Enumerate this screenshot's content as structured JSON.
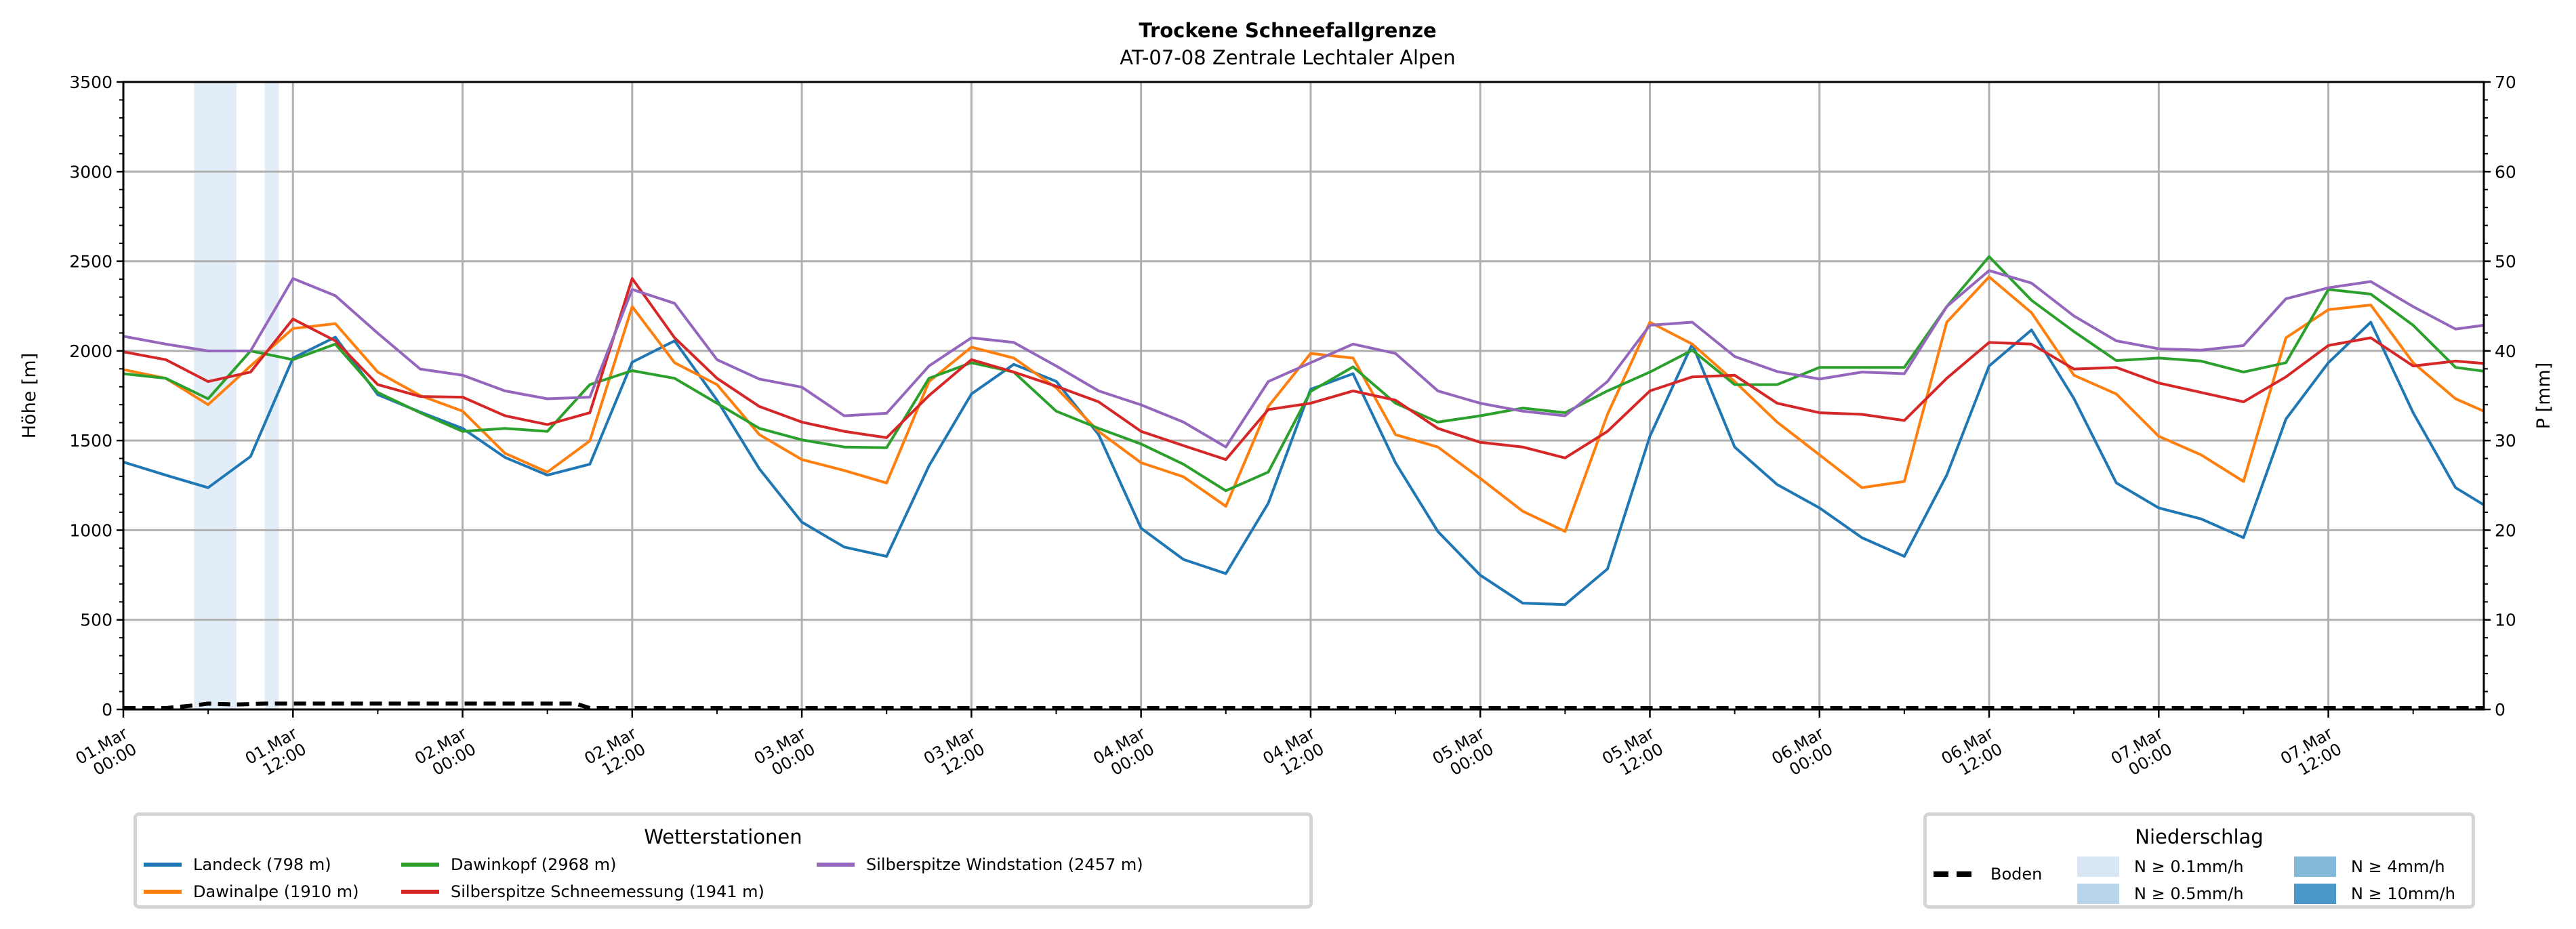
{
  "chart_data": {
    "type": "line",
    "title": "Trockene Schneefallgrenze",
    "subtitle": "AT-07-08 Zentrale Lechtaler Alpen",
    "ylabel": "Höhe [m]",
    "y2label": "P [mm]",
    "ylim": [
      0,
      3500
    ],
    "y2lim": [
      0,
      70
    ],
    "yticks": [
      0,
      500,
      1000,
      1500,
      2000,
      2500,
      3000,
      3500
    ],
    "y2ticks": [
      0,
      10,
      20,
      30,
      40,
      50,
      60,
      70
    ],
    "x_unit": "hours since 01.Mar 00:00",
    "xlim": [
      0,
      167
    ],
    "xticks": [
      {
        "t": 0,
        "label": "01.Mar\n00:00"
      },
      {
        "t": 12,
        "label": "01.Mar\n12:00"
      },
      {
        "t": 24,
        "label": "02.Mar\n00:00"
      },
      {
        "t": 36,
        "label": "02.Mar\n12:00"
      },
      {
        "t": 48,
        "label": "03.Mar\n00:00"
      },
      {
        "t": 60,
        "label": "03.Mar\n12:00"
      },
      {
        "t": 72,
        "label": "04.Mar\n00:00"
      },
      {
        "t": 84,
        "label": "04.Mar\n12:00"
      },
      {
        "t": 96,
        "label": "05.Mar\n00:00"
      },
      {
        "t": 108,
        "label": "05.Mar\n12:00"
      },
      {
        "t": 120,
        "label": "06.Mar\n00:00"
      },
      {
        "t": 132,
        "label": "06.Mar\n12:00"
      },
      {
        "t": 144,
        "label": "07.Mar\n00:00"
      },
      {
        "t": 156,
        "label": "07.Mar\n12:00"
      }
    ],
    "grid": true,
    "x": [
      0,
      3,
      6,
      9,
      12,
      15,
      18,
      21,
      24,
      27,
      30,
      33,
      36,
      39,
      42,
      45,
      48,
      51,
      54,
      57,
      60,
      63,
      66,
      69,
      72,
      75,
      78,
      81,
      84,
      87,
      90,
      93,
      96,
      99,
      102,
      105,
      108,
      111,
      114,
      117,
      120,
      123,
      126,
      129,
      132,
      135,
      138,
      141,
      144,
      147,
      150,
      153,
      156,
      159,
      162,
      165,
      167
    ],
    "series": [
      {
        "name": "Landeck (798 m)",
        "color": "#1f77b4",
        "values": [
          1380,
          1307,
          1237,
          1411,
          1960,
          2077,
          1756,
          1659,
          1568,
          1406,
          1307,
          1368,
          1937,
          2056,
          1725,
          1342,
          1045,
          906,
          854,
          1359,
          1760,
          1925,
          1830,
          1533,
          1011,
          837,
          758,
          1150,
          1786,
          1873,
          1376,
          993,
          749,
          593,
          585,
          784,
          1524,
          2038,
          1464,
          1255,
          1124,
          958,
          854,
          1307,
          1916,
          2117,
          1734,
          1264,
          1124,
          1063,
          958,
          1620,
          1934,
          2160,
          1655,
          1237,
          1141
        ]
      },
      {
        "name": "Dawinalpe (1910 m)",
        "color": "#ff7f0e",
        "values": [
          1896,
          1847,
          1700,
          1916,
          2125,
          2152,
          1882,
          1751,
          1664,
          1429,
          1324,
          1498,
          2247,
          1934,
          1812,
          1533,
          1394,
          1333,
          1263,
          1829,
          2021,
          1960,
          1794,
          1551,
          1376,
          1298,
          1133,
          1690,
          1986,
          1960,
          1533,
          1464,
          1289,
          1106,
          993,
          1646,
          2160,
          2038,
          1829,
          1603,
          1420,
          1237,
          1272,
          2160,
          2413,
          2213,
          1864,
          1760,
          1524,
          1420,
          1272,
          2073,
          2230,
          2256,
          1934,
          1733,
          1664
        ]
      },
      {
        "name": "Dawinkopf (2968 m)",
        "color": "#2ca02c",
        "values": [
          1873,
          1847,
          1733,
          2000,
          1951,
          2038,
          1768,
          1655,
          1551,
          1568,
          1551,
          1812,
          1890,
          1847,
          1708,
          1568,
          1504,
          1464,
          1460,
          1847,
          1934,
          1882,
          1664,
          1568,
          1481,
          1368,
          1220,
          1324,
          1774,
          1911,
          1708,
          1603,
          1638,
          1681,
          1655,
          1777,
          1882,
          2004,
          1812,
          1812,
          1908,
          1908,
          1908,
          2247,
          2526,
          2282,
          2108,
          1946,
          1960,
          1943,
          1882,
          1934,
          2343,
          2317,
          2143,
          1908,
          1887
        ]
      },
      {
        "name": "Silberspitze Schneemessung (1941 m)",
        "color": "#d62728",
        "values": [
          1995,
          1951,
          1829,
          1882,
          2178,
          2056,
          1812,
          1746,
          1742,
          1638,
          1589,
          1655,
          2404,
          2073,
          1847,
          1690,
          1603,
          1551,
          1516,
          1751,
          1951,
          1882,
          1803,
          1716,
          1551,
          1472,
          1394,
          1673,
          1708,
          1777,
          1725,
          1568,
          1490,
          1464,
          1403,
          1551,
          1777,
          1855,
          1864,
          1708,
          1655,
          1646,
          1612,
          1847,
          2047,
          2038,
          1899,
          1908,
          1821,
          1768,
          1716,
          1855,
          2030,
          2073,
          1916,
          1943,
          1930
        ]
      },
      {
        "name": "Silberspitze Windstation (2457 m)",
        "color": "#9467bd",
        "values": [
          2082,
          2038,
          2000,
          2000,
          2404,
          2308,
          2099,
          1899,
          1864,
          1777,
          1733,
          1742,
          2343,
          2265,
          1951,
          1843,
          1798,
          1638,
          1652,
          1916,
          2073,
          2047,
          1916,
          1777,
          1699,
          1603,
          1464,
          1829,
          1934,
          2038,
          1986,
          1777,
          1708,
          1664,
          1638,
          1829,
          2143,
          2160,
          1969,
          1885,
          1843,
          1882,
          1873,
          2247,
          2448,
          2378,
          2195,
          2056,
          2012,
          2004,
          2030,
          2291,
          2352,
          2387,
          2247,
          2122,
          2143
        ]
      }
    ],
    "boden": {
      "name": "Boden",
      "x": [
        0,
        3,
        5,
        6,
        8,
        10,
        12,
        20,
        30,
        32,
        33,
        167
      ],
      "values": [
        0,
        0,
        15,
        25,
        20,
        25,
        25,
        25,
        25,
        25,
        0,
        0
      ]
    },
    "precip_periods": [
      {
        "start": 5,
        "end": 8,
        "class": "N ≥ 0.1mm/h"
      },
      {
        "start": 10,
        "end": 11,
        "class": "N ≥ 0.1mm/h"
      }
    ],
    "legend_stations": {
      "title": "Wetterstationen",
      "placement": "below-left"
    },
    "legend_precip": {
      "title": "Niederschlag",
      "placement": "below-right",
      "boden_label": "Boden",
      "classes": [
        {
          "label": "N ≥ 0.1mm/h",
          "color": "#d9e7f5"
        },
        {
          "label": "N ≥ 0.5mm/h",
          "color": "#b9d5ea"
        },
        {
          "label": "N ≥ 4mm/h",
          "color": "#84b9da"
        },
        {
          "label": "N ≥ 10mm/h",
          "color": "#4a98c9"
        }
      ]
    }
  }
}
